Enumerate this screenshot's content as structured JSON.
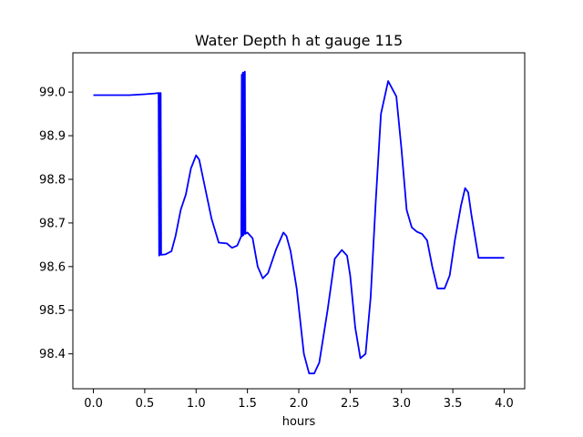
{
  "chart_data": {
    "type": "line",
    "title": "Water Depth h at gauge 115",
    "xlabel": "hours",
    "ylabel": "",
    "xlim": [
      -0.2,
      4.2
    ],
    "ylim": [
      98.32,
      99.09
    ],
    "xticks": [
      0.0,
      0.5,
      1.0,
      1.5,
      2.0,
      2.5,
      3.0,
      3.5,
      4.0
    ],
    "xtick_labels": [
      "0.0",
      "0.5",
      "1.0",
      "1.5",
      "2.0",
      "2.5",
      "3.0",
      "3.5",
      "4.0"
    ],
    "yticks": [
      98.4,
      98.5,
      98.6,
      98.7,
      98.8,
      98.9,
      99.0
    ],
    "ytick_labels": [
      "98.4",
      "98.5",
      "98.6",
      "98.7",
      "98.8",
      "98.9",
      "99.0"
    ],
    "grid": false,
    "legend": "none",
    "series": [
      {
        "color": "#0000ff",
        "x": [
          0.0,
          0.2,
          0.35,
          0.5,
          0.6,
          0.635,
          0.64,
          0.645,
          0.65,
          0.655,
          0.66,
          0.7,
          0.76,
          0.8,
          0.85,
          0.9,
          0.95,
          1.0,
          1.03,
          1.07,
          1.15,
          1.22,
          1.3,
          1.35,
          1.4,
          1.44,
          1.445,
          1.45,
          1.455,
          1.46,
          1.465,
          1.47,
          1.475,
          1.48,
          1.5,
          1.55,
          1.6,
          1.65,
          1.7,
          1.78,
          1.85,
          1.88,
          1.92,
          1.98,
          2.05,
          2.1,
          2.15,
          2.2,
          2.28,
          2.35,
          2.42,
          2.47,
          2.5,
          2.55,
          2.6,
          2.65,
          2.7,
          2.75,
          2.8,
          2.87,
          2.95,
          3.0,
          3.05,
          3.1,
          3.15,
          3.2,
          3.25,
          3.3,
          3.35,
          3.42,
          3.47,
          3.52,
          3.58,
          3.62,
          3.65,
          3.68,
          3.75,
          3.82,
          3.88,
          3.92,
          3.95,
          4.0
        ],
        "y": [
          98.993,
          98.993,
          98.993,
          98.995,
          98.997,
          98.998,
          98.625,
          98.998,
          98.627,
          98.998,
          98.627,
          98.628,
          98.635,
          98.67,
          98.73,
          98.765,
          98.825,
          98.855,
          98.845,
          98.8,
          98.71,
          98.655,
          98.653,
          98.643,
          98.648,
          98.67,
          99.04,
          98.67,
          99.045,
          98.672,
          99.045,
          98.675,
          99.047,
          98.675,
          98.678,
          98.665,
          98.6,
          98.573,
          98.585,
          98.64,
          98.678,
          98.67,
          98.635,
          98.55,
          98.4,
          98.355,
          98.355,
          98.38,
          98.5,
          98.618,
          98.638,
          98.625,
          98.58,
          98.46,
          98.39,
          98.4,
          98.53,
          98.75,
          98.95,
          99.025,
          98.99,
          98.87,
          98.73,
          98.69,
          98.68,
          98.675,
          98.66,
          98.6,
          98.55,
          98.55,
          98.58,
          98.66,
          98.74,
          98.78,
          98.77,
          98.72,
          98.62,
          98.62,
          98.62,
          98.62,
          98.62,
          98.62
        ]
      }
    ]
  }
}
